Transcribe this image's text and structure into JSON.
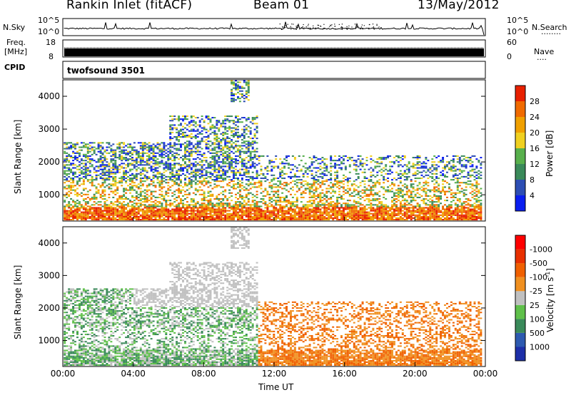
{
  "header": {
    "title": "Rankin Inlet (fitACF)",
    "beam": "Beam 01",
    "date": "13/May/2012"
  },
  "top_panels": {
    "nsky_label": "N.Sky",
    "nsearch_label": "N.Search",
    "nsearch_dots": "........",
    "nsky_ticks": [
      "10^5",
      "10^0"
    ],
    "freq_label_1": "Freq.",
    "freq_label_2": "[MHz]",
    "freq_ticks": [
      "18",
      "8"
    ],
    "nave_label": "Nave",
    "nave_dots": "....",
    "nave_ticks": [
      "60",
      "0"
    ],
    "cpid_label": "CPID",
    "cpid_value": "twofsound 3501"
  },
  "chart_data": [
    {
      "type": "heatmap",
      "panel": "power",
      "ylabel": "Slant Range [km]",
      "yticks": [
        1000,
        2000,
        3000,
        4000
      ],
      "ylim": [
        200,
        4500
      ],
      "xlim": [
        0,
        24
      ],
      "colorbar": {
        "label": "Power [dB]",
        "ticks": [
          "4",
          "8",
          "12",
          "16",
          "20",
          "24",
          "28"
        ],
        "colors": [
          "#0a1ef0",
          "#2d4eb4",
          "#3a8a5a",
          "#58b04c",
          "#f0d020",
          "#f0a000",
          "#f06a00",
          "#e82000"
        ]
      }
    },
    {
      "type": "heatmap",
      "panel": "velocity",
      "ylabel": "Slant Range [km]",
      "yticks": [
        1000,
        2000,
        3000,
        4000
      ],
      "ylim": [
        200,
        4500
      ],
      "xlim": [
        0,
        24
      ],
      "xlabel": "Time UT",
      "xticks": [
        "00:00",
        "04:00",
        "08:00",
        "12:00",
        "16:00",
        "20:00",
        "00:00"
      ],
      "colorbar": {
        "label": "Velocity [m s",
        "label_sup": "-1",
        "label_end": "]",
        "ticks": [
          "1000",
          "500",
          "100",
          "25",
          "-25",
          "-100",
          "-500",
          "-1000"
        ],
        "colors": [
          "#1d2fa8",
          "#2d5ab0",
          "#3a8a5a",
          "#5fc04a",
          "#c0c0c0",
          "#f09020",
          "#f06000",
          "#e83000",
          "#ff0000"
        ]
      }
    }
  ]
}
